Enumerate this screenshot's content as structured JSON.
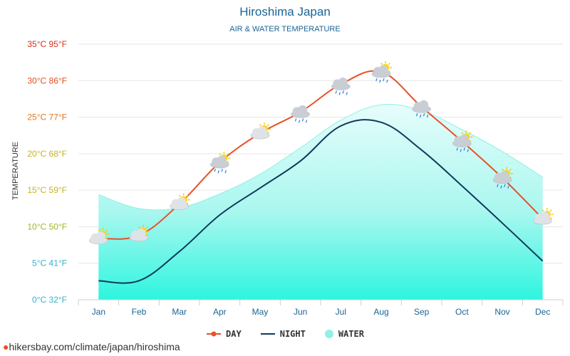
{
  "title": "Hiroshima Japan",
  "subtitle": "AIR & WATER TEMPERATURE",
  "footer": "hikersbay.com/climate/japan/hiroshima",
  "colors": {
    "day": "#e8502a",
    "night": "#0f3a5a",
    "water_top": "#d9fbf8",
    "water_bottom": "#2ef5df",
    "water_edge": "#8ff0e6",
    "title": "#1a6496"
  },
  "chart_data": {
    "type": "line",
    "categories": [
      "Jan",
      "Feb",
      "Mar",
      "Apr",
      "May",
      "Jun",
      "Jul",
      "Aug",
      "Sep",
      "Oct",
      "Nov",
      "Dec"
    ],
    "ylabel": "TEMPERATURE",
    "ylim": [
      0,
      35
    ],
    "yticks": [
      {
        "value": 0,
        "label": "0°C 32°F",
        "color": "#3ab0c8"
      },
      {
        "value": 5,
        "label": "5°C 41°F",
        "color": "#3ab0c8"
      },
      {
        "value": 10,
        "label": "10°C 50°F",
        "color": "#9ab82a"
      },
      {
        "value": 15,
        "label": "15°C 59°F",
        "color": "#c8b41e"
      },
      {
        "value": 20,
        "label": "20°C 68°F",
        "color": "#c8b41e"
      },
      {
        "value": 25,
        "label": "25°C 77°F",
        "color": "#e0761e"
      },
      {
        "value": 30,
        "label": "30°C 86°F",
        "color": "#e0501e"
      },
      {
        "value": 35,
        "label": "35°C 95°F",
        "color": "#d8301e"
      }
    ],
    "series": [
      {
        "name": "DAY",
        "kind": "line",
        "color": "#e8502a",
        "values": [
          8.4,
          8.8,
          13.1,
          18.8,
          22.8,
          25.7,
          29.5,
          31.2,
          26.4,
          21.7,
          16.7,
          11.1
        ]
      },
      {
        "name": "NIGHT",
        "kind": "line",
        "color": "#0f3a5a",
        "values": [
          2.6,
          2.6,
          6.6,
          11.6,
          15.3,
          19.0,
          23.8,
          24.3,
          20.5,
          15.6,
          10.5,
          5.3
        ]
      },
      {
        "name": "WATER",
        "kind": "area",
        "color": "#8ff0e6",
        "values": [
          14.4,
          12.5,
          12.6,
          14.5,
          17.2,
          20.8,
          24.6,
          26.7,
          25.9,
          23.3,
          20.3,
          16.8
        ]
      }
    ],
    "weather_icons": [
      "sun-cloud",
      "sun-cloud",
      "sun-cloud",
      "sun-rain-cloud",
      "sun-cloud",
      "rain-cloud",
      "rain-cloud",
      "sun-rain-cloud",
      "rain-cloud",
      "sun-rain-cloud",
      "sun-rain-cloud",
      "sun-cloud"
    ],
    "legend_position": "bottom",
    "grid": true
  }
}
